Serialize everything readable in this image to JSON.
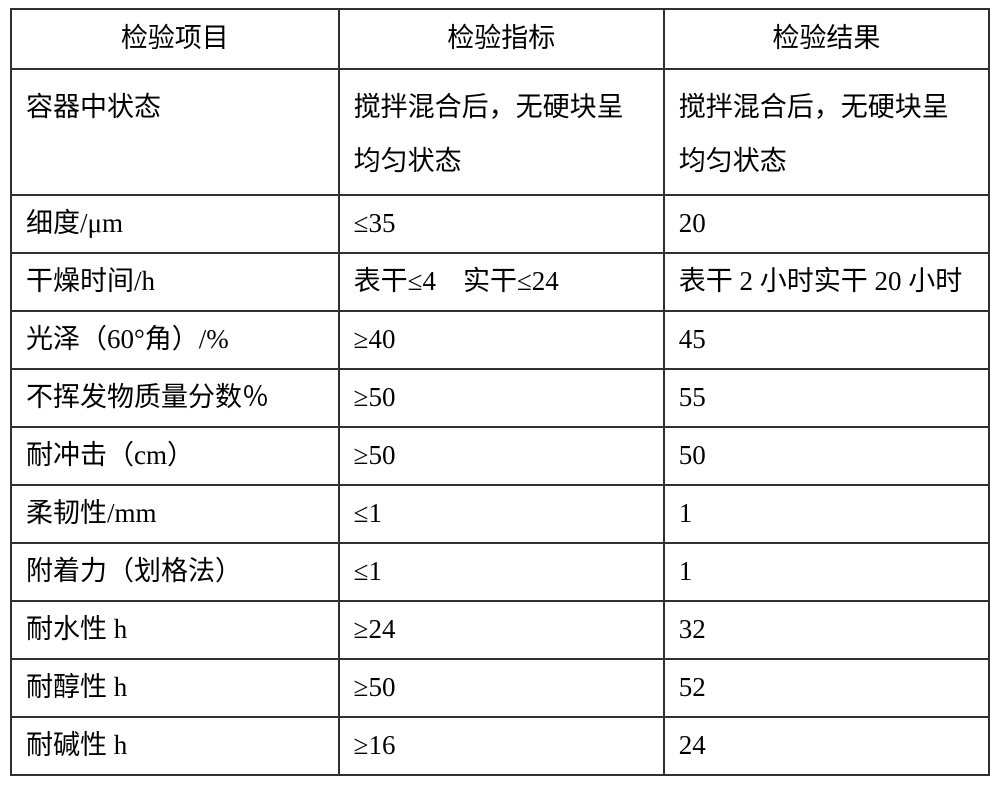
{
  "table": {
    "border_color": "#303030",
    "background_color": "#ffffff",
    "text_color": "#000000",
    "font_family": "SimSun",
    "header_fontsize": 27,
    "cell_fontsize": 27,
    "columns": [
      {
        "label": "检验项目",
        "width_pct": 33.5,
        "align": "center"
      },
      {
        "label": "检验指标",
        "width_pct": 33.25,
        "align": "center"
      },
      {
        "label": "检验结果",
        "width_pct": 33.25,
        "align": "center"
      }
    ],
    "rows": [
      {
        "tall": true,
        "cells": [
          "容器中状态",
          "搅拌混合后，无硬块呈均匀状态",
          "搅拌混合后，无硬块呈均匀状态"
        ]
      },
      {
        "cells": [
          "细度/μm",
          "≤35",
          "20"
        ]
      },
      {
        "cells": [
          "干燥时间/h",
          "表干≤4　实干≤24",
          "表干 2 小时实干 20 小时"
        ]
      },
      {
        "cells": [
          "光泽（60°角）/%",
          "≥40",
          "45"
        ]
      },
      {
        "cells": [
          "不挥发物质量分数％",
          "≥50",
          "55"
        ]
      },
      {
        "cells": [
          "耐冲击（cm）",
          "≥50",
          "50"
        ]
      },
      {
        "cells": [
          "柔韧性/mm",
          "≤1",
          "1"
        ]
      },
      {
        "cells": [
          "附着力（划格法）",
          "≤1",
          "1"
        ]
      },
      {
        "cells": [
          "耐水性 h",
          "≥24",
          "32"
        ]
      },
      {
        "cells": [
          "耐醇性 h",
          "≥50",
          "52"
        ]
      },
      {
        "cells": [
          "耐碱性 h",
          "≥16",
          "24"
        ]
      }
    ]
  }
}
